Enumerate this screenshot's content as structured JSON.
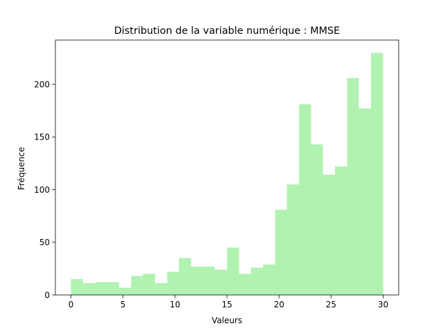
{
  "chart_data": {
    "type": "bar",
    "title": "Distribution de la variable numérique : MMSE",
    "xlabel": "Valeurs",
    "ylabel": "Fréquence",
    "xlim": [
      -1.5,
      31.5
    ],
    "ylim": [
      0,
      242
    ],
    "bin_edges": [
      0,
      1.15,
      2.31,
      3.46,
      4.62,
      5.77,
      6.92,
      8.08,
      9.23,
      10.38,
      11.54,
      12.69,
      13.85,
      15,
      16.15,
      17.31,
      18.46,
      19.62,
      20.77,
      21.92,
      23.08,
      24.23,
      25.38,
      26.54,
      27.69,
      28.85,
      30
    ],
    "series": [
      {
        "values": [
          15,
          11,
          12,
          12,
          7,
          18,
          20,
          11,
          22,
          35,
          27,
          27,
          24,
          45,
          20,
          26,
          29,
          81,
          105,
          181,
          143,
          114,
          122,
          206,
          177,
          230
        ]
      }
    ],
    "bar_color": "#b1f2b1",
    "x_ticks": [
      0,
      5,
      10,
      15,
      20,
      25,
      30
    ],
    "x_tick_labels": [
      "0",
      "5",
      "10",
      "15",
      "20",
      "25",
      "30"
    ],
    "y_ticks": [
      0,
      50,
      100,
      150,
      200
    ],
    "y_tick_labels": [
      "0",
      "50",
      "100",
      "150",
      "200"
    ],
    "grid": false,
    "legend": "none"
  }
}
